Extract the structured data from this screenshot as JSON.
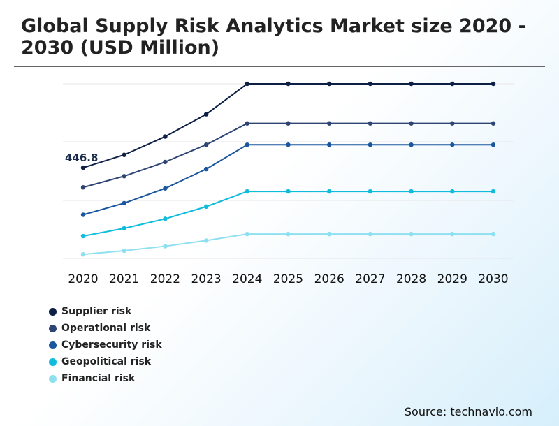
{
  "chart_data": {
    "type": "line",
    "title": "Global Supply Risk Analytics Market size 2020 - 2030 (USD Million)",
    "categories": [
      "2020",
      "2021",
      "2022",
      "2023",
      "2024",
      "2025",
      "2026",
      "2027",
      "2028",
      "2029",
      "2030"
    ],
    "series": [
      {
        "name": "Supplier risk",
        "color": "#0d1f45",
        "values": [
          446.8,
          510,
          600,
          710,
          860,
          860,
          860,
          860,
          860,
          860,
          860
        ]
      },
      {
        "name": "Operational risk",
        "color": "#2e4474",
        "values": [
          350,
          405,
          475,
          560,
          665,
          665,
          665,
          665,
          665,
          665,
          665
        ]
      },
      {
        "name": "Cybersecurity risk",
        "color": "#1a569e",
        "values": [
          215,
          272,
          345,
          440,
          560,
          560,
          560,
          560,
          560,
          560,
          560
        ]
      },
      {
        "name": "Geopolitical risk",
        "color": "#0fbcdc",
        "values": [
          110,
          148,
          195,
          255,
          330,
          330,
          330,
          330,
          330,
          330,
          330
        ]
      },
      {
        "name": "Financial risk",
        "color": "#8ee0f0",
        "values": [
          20,
          38,
          60,
          88,
          120,
          120,
          120,
          120,
          120,
          120,
          120
        ]
      }
    ],
    "annotations": [
      {
        "series": 0,
        "index": 0,
        "text": "446.8"
      }
    ],
    "yaxis_labels": "none",
    "grid": "horizontal",
    "legend": "bottom-left"
  },
  "source": "Source: technavio.com"
}
